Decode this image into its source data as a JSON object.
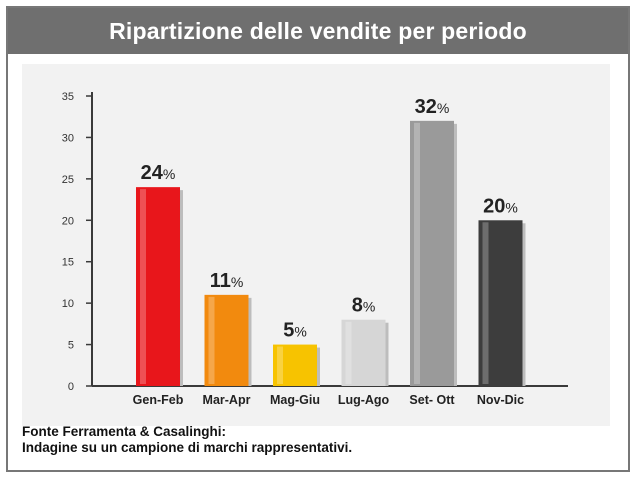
{
  "title": "Ripartizione delle vendite per periodo",
  "source": {
    "line1": "Fonte Ferramenta & Casalinghi:",
    "line2": "Indagine su un campione di marchi rappresentativi."
  },
  "chart_data": {
    "type": "bar",
    "categories": [
      "Gen-Feb",
      "Mar-Apr",
      "Mag-Giu",
      "Lug-Ago",
      "Set- Ott",
      "Nov-Dic"
    ],
    "values": [
      24,
      11,
      5,
      8,
      32,
      20
    ],
    "value_labels": [
      "24%",
      "11%",
      "5%",
      "8%",
      "32%",
      "20%"
    ],
    "bar_colors": [
      "#e8161b",
      "#f28a0e",
      "#f7c300",
      "#d6d6d6",
      "#9a9a9a",
      "#3d3d3d"
    ],
    "yticks": [
      0,
      5,
      10,
      15,
      20,
      25,
      30,
      35
    ],
    "ylim": [
      0,
      35
    ],
    "grid": false,
    "legend": "none"
  }
}
